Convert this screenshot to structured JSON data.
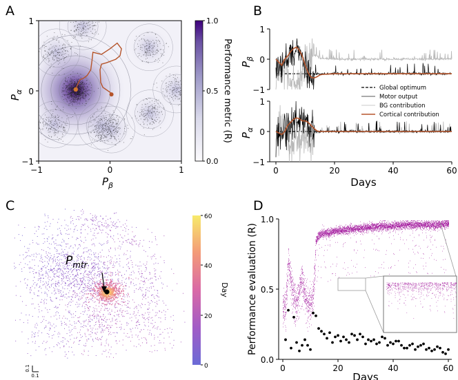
{
  "colors": {
    "purple_dark": "#3f007d",
    "purple_light": "#fcfbfd",
    "cortical": "#b5542a",
    "motor": "#000000",
    "bg": "#b8b8b8",
    "magenta": "#a0139a",
    "plasma_low": "#7a6ad6",
    "plasma_high": "#f7e96a"
  },
  "chart_data": [
    {
      "panel": "A",
      "type": "heatmap",
      "xlabel": "P_β",
      "ylabel": "P_α",
      "xlim": [
        -1,
        1
      ],
      "ylim": [
        -1,
        1
      ],
      "xticks": [
        "−1",
        "0",
        "1"
      ],
      "yticks": [
        "−1",
        "0",
        "1"
      ],
      "colorbar": {
        "label": "Performance metric (R)",
        "ticks": [
          "1.0",
          "0.5",
          "0.0"
        ],
        "range": [
          0,
          1
        ]
      },
      "optimum": {
        "x": -0.48,
        "y": 0.01
      },
      "local_peaks": [
        {
          "x": -0.38,
          "y": 0.92
        },
        {
          "x": -0.75,
          "y": 0.55
        },
        {
          "x": 0.55,
          "y": 0.62
        },
        {
          "x": 0.56,
          "y": -0.32
        },
        {
          "x": 0.02,
          "y": -0.55
        },
        {
          "x": -0.78,
          "y": -0.48
        },
        {
          "x": 0.93,
          "y": 0.02
        },
        {
          "x": -0.12,
          "y": -0.5
        }
      ],
      "trajectory": [
        [
          -0.48,
          0.02
        ],
        [
          -0.47,
          0.05
        ],
        [
          -0.45,
          0.1
        ],
        [
          -0.42,
          0.16
        ],
        [
          -0.37,
          0.18
        ],
        [
          -0.32,
          0.22
        ],
        [
          -0.27,
          0.3
        ],
        [
          -0.25,
          0.45
        ],
        [
          -0.24,
          0.55
        ],
        [
          -0.12,
          0.52
        ],
        [
          0.0,
          0.6
        ],
        [
          0.1,
          0.68
        ],
        [
          0.16,
          0.6
        ],
        [
          0.14,
          0.5
        ],
        [
          0.08,
          0.45
        ],
        [
          -0.05,
          0.4
        ],
        [
          -0.12,
          0.38
        ],
        [
          -0.14,
          0.3
        ],
        [
          -0.13,
          0.12
        ],
        [
          -0.1,
          0.05
        ],
        [
          0.0,
          -0.02
        ],
        [
          0.02,
          -0.05
        ]
      ]
    },
    {
      "panel": "B",
      "type": "line",
      "xlabel": "Days",
      "xlim": [
        0,
        60
      ],
      "xticks": [
        "0",
        "20",
        "40",
        "60"
      ],
      "subplots": [
        {
          "ylabel": "P_β",
          "ylim": [
            -1,
            1
          ],
          "yticks": [
            "1",
            "0",
            "−1"
          ],
          "global_optimum": -0.48,
          "series": [
            {
              "name": "Cortical contribution",
              "x": [
                0,
                1,
                2,
                3,
                4,
                5,
                6,
                7,
                8,
                9,
                10,
                11,
                12,
                13,
                14,
                15,
                16,
                18,
                20,
                25,
                30,
                40,
                50,
                60
              ],
              "y": [
                0,
                -0.1,
                -0.2,
                0.0,
                0.1,
                0.25,
                0.35,
                0.4,
                0.3,
                0.1,
                -0.2,
                -0.45,
                -0.6,
                -0.62,
                -0.58,
                -0.52,
                -0.5,
                -0.49,
                -0.48,
                -0.48,
                -0.48,
                -0.48,
                -0.48,
                -0.48
              ]
            }
          ]
        },
        {
          "ylabel": "P_α",
          "ylim": [
            -1,
            1
          ],
          "yticks": [
            "1",
            "0",
            "−1"
          ],
          "global_optimum": 0.0,
          "series": [
            {
              "name": "Cortical contribution",
              "x": [
                0,
                1,
                2,
                3,
                4,
                5,
                6,
                7,
                8,
                9,
                10,
                11,
                12,
                13,
                14,
                15,
                16,
                18,
                20,
                25,
                30,
                40,
                50,
                60
              ],
              "y": [
                0,
                -0.05,
                -0.1,
                0.0,
                0.2,
                0.3,
                0.4,
                0.45,
                0.42,
                0.35,
                0.35,
                0.3,
                0.2,
                0.1,
                0.02,
                0.0,
                0.0,
                0.0,
                0.0,
                0.0,
                0.0,
                0.0,
                0.0,
                0.0
              ]
            }
          ]
        }
      ],
      "legend": [
        "Global optimum",
        "Motor output",
        "BG contribution",
        "Cortical contribution"
      ],
      "legend_position": "right"
    },
    {
      "panel": "C",
      "type": "scatter",
      "annotation": "P_mtr",
      "colorbar": {
        "label": "Day",
        "ticks": [
          "60",
          "40",
          "20",
          "0"
        ],
        "range": [
          0,
          60
        ]
      },
      "scalebar": [
        "0.1",
        "0.1"
      ]
    },
    {
      "panel": "D",
      "type": "scatter",
      "xlabel": "Days",
      "ylabel": "Performance evaluation (R)",
      "xlim": [
        0,
        60
      ],
      "ylim": [
        0,
        1
      ],
      "xticks": [
        "0",
        "20",
        "40",
        "60"
      ],
      "yticks": [
        "0.0",
        "0.5",
        "1.0"
      ],
      "black_points": {
        "x": [
          1,
          3,
          5,
          7,
          9,
          11,
          13,
          15,
          17,
          19,
          21,
          23,
          25,
          27,
          29,
          31,
          33,
          35,
          37,
          39,
          41,
          43,
          45,
          47,
          49,
          51,
          53,
          55,
          57,
          59,
          2,
          4,
          6,
          8,
          10,
          12,
          14,
          16,
          18,
          20,
          22,
          24,
          26,
          28,
          30,
          32,
          34,
          36,
          38,
          40,
          42,
          44,
          46,
          48,
          50,
          52,
          54,
          56,
          58,
          60
        ],
        "y": [
          0.14,
          0.08,
          0.12,
          0.1,
          0.1,
          0.33,
          0.22,
          0.18,
          0.19,
          0.16,
          0.13,
          0.14,
          0.18,
          0.14,
          0.16,
          0.14,
          0.14,
          0.12,
          0.15,
          0.12,
          0.13,
          0.1,
          0.08,
          0.11,
          0.09,
          0.11,
          0.08,
          0.07,
          0.08,
          0.04,
          0.35,
          0.3,
          0.06,
          0.14,
          0.07,
          0.31,
          0.2,
          0.15,
          0.12,
          0.17,
          0.16,
          0.12,
          0.17,
          0.18,
          0.11,
          0.13,
          0.11,
          0.16,
          0.1,
          0.11,
          0.13,
          0.08,
          0.1,
          0.07,
          0.1,
          0.07,
          0.06,
          0.09,
          0.05,
          0.07
        ]
      },
      "mean_reward": {
        "x": [
          0,
          1,
          2,
          3,
          4,
          5,
          6,
          7,
          8,
          9,
          10,
          11,
          12,
          13,
          14,
          15,
          16,
          20,
          25,
          30,
          35,
          40,
          45,
          50,
          55,
          60
        ],
        "y": [
          0.38,
          0.4,
          0.72,
          0.55,
          0.45,
          0.4,
          0.5,
          0.58,
          0.45,
          0.4,
          0.4,
          0.45,
          0.85,
          0.88,
          0.9,
          0.9,
          0.9,
          0.92,
          0.93,
          0.94,
          0.95,
          0.95,
          0.96,
          0.96,
          0.96,
          0.97
        ]
      }
    }
  ]
}
